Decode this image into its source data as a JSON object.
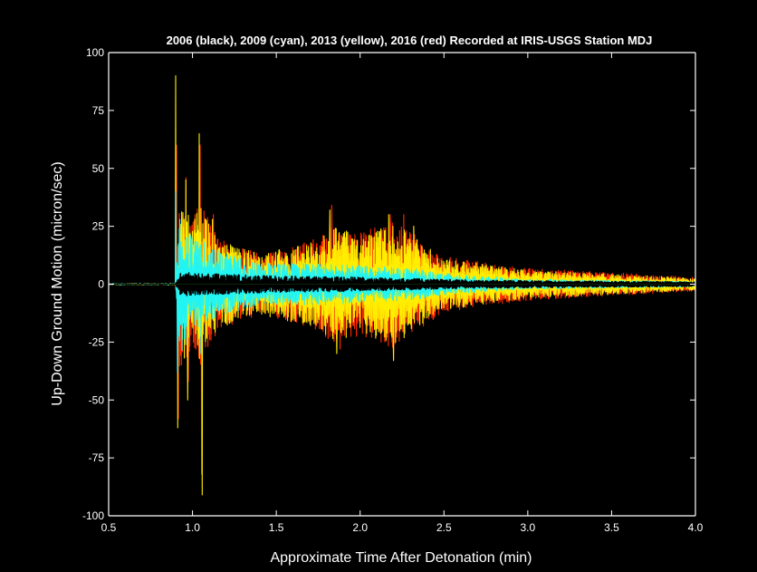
{
  "chart_data": {
    "type": "line",
    "title": "2006 (black), 2009 (cyan), 2013 (yellow), 2016 (red) Recorded at IRIS-USGS Station MDJ",
    "xlabel": "Approximate Time After Detonation (min)",
    "ylabel": "Up-Down Ground Motion (micron/sec)",
    "xlim": [
      0.5,
      4.0
    ],
    "ylim": [
      -100,
      100
    ],
    "xticks": [
      "0.5",
      "1.0",
      "1.5",
      "2.0",
      "2.5",
      "3.0",
      "3.5",
      "4.0"
    ],
    "yticks": [
      "100",
      "75",
      "50",
      "25",
      "0",
      "-25",
      "-50",
      "-75",
      "-100"
    ],
    "grid": false,
    "background": "#000000",
    "series": [
      {
        "name": "2016 (red)",
        "color": "#ff2a00",
        "onset": 0.9,
        "envelope": [
          [
            0.5,
            0.4
          ],
          [
            0.9,
            0.4
          ],
          [
            0.92,
            40
          ],
          [
            1.0,
            28
          ],
          [
            1.05,
            36
          ],
          [
            1.15,
            20
          ],
          [
            1.4,
            13
          ],
          [
            1.75,
            20
          ],
          [
            1.85,
            26
          ],
          [
            2.0,
            22
          ],
          [
            2.2,
            28
          ],
          [
            2.5,
            12
          ],
          [
            3.0,
            7
          ],
          [
            3.5,
            5
          ],
          [
            4.0,
            3
          ]
        ],
        "peaks": [
          [
            0.905,
            60
          ],
          [
            0.915,
            -58
          ],
          [
            0.96,
            46
          ],
          [
            0.975,
            -42
          ],
          [
            1.045,
            60
          ],
          [
            1.055,
            -82
          ],
          [
            1.125,
            30
          ],
          [
            1.83,
            34
          ],
          [
            1.88,
            -28
          ],
          [
            2.18,
            30
          ],
          [
            2.2,
            -32
          ],
          [
            2.26,
            30
          ]
        ]
      },
      {
        "name": "2013 (yellow)",
        "color": "#ffee00",
        "onset": 0.9,
        "envelope": [
          [
            0.5,
            0.4
          ],
          [
            0.9,
            0.4
          ],
          [
            0.92,
            36
          ],
          [
            1.0,
            27
          ],
          [
            1.05,
            34
          ],
          [
            1.15,
            19
          ],
          [
            1.4,
            13
          ],
          [
            1.75,
            19
          ],
          [
            1.85,
            25
          ],
          [
            2.0,
            21
          ],
          [
            2.2,
            27
          ],
          [
            2.5,
            11
          ],
          [
            3.0,
            6
          ],
          [
            3.5,
            4.5
          ],
          [
            4.0,
            2.5
          ]
        ],
        "peaks": [
          [
            0.9,
            90
          ],
          [
            0.912,
            -62
          ],
          [
            0.96,
            45
          ],
          [
            0.972,
            -50
          ],
          [
            1.04,
            65
          ],
          [
            1.058,
            -91
          ],
          [
            1.12,
            28
          ],
          [
            1.82,
            32
          ],
          [
            1.86,
            -30
          ],
          [
            2.17,
            30
          ],
          [
            2.2,
            -33
          ],
          [
            2.32,
            25
          ]
        ]
      },
      {
        "name": "2009 (cyan)",
        "color": "#22f4f4",
        "onset": 0.9,
        "envelope": [
          [
            0.5,
            0.4
          ],
          [
            0.9,
            0.4
          ],
          [
            0.92,
            32
          ],
          [
            1.0,
            20
          ],
          [
            1.1,
            16
          ],
          [
            1.4,
            9
          ],
          [
            1.8,
            9
          ],
          [
            2.0,
            8
          ],
          [
            2.3,
            7
          ],
          [
            2.6,
            4
          ],
          [
            3.0,
            2.2
          ],
          [
            4.0,
            1.2
          ]
        ],
        "peaks": [
          [
            0.9,
            40
          ],
          [
            0.91,
            -38
          ],
          [
            0.96,
            20
          ],
          [
            1.05,
            -30
          ],
          [
            1.07,
            18
          ]
        ]
      },
      {
        "name": "2006 (black)",
        "color": "#000000",
        "onset": 0.9,
        "envelope": [
          [
            0.5,
            0.2
          ],
          [
            0.9,
            0.2
          ],
          [
            0.93,
            5
          ],
          [
            1.1,
            4.5
          ],
          [
            1.5,
            3.5
          ],
          [
            2.0,
            3
          ],
          [
            2.5,
            2
          ],
          [
            3.0,
            1.5
          ],
          [
            4.0,
            1
          ]
        ],
        "peaks": []
      }
    ]
  }
}
